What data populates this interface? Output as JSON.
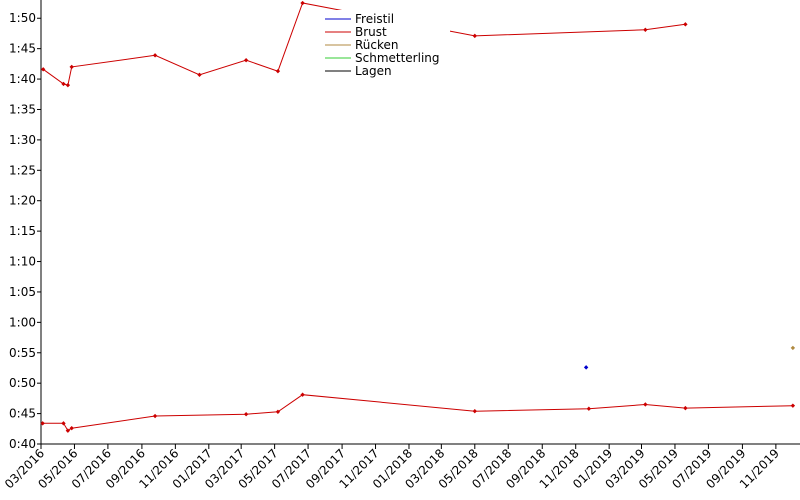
{
  "chart_data": {
    "type": "line",
    "x_axis": {
      "type": "date",
      "range": [
        "2016-03-01",
        "2019-12-15"
      ],
      "tick_labels": [
        "03/2016",
        "05/2016",
        "07/2016",
        "09/2016",
        "11/2016",
        "01/2017",
        "03/2017",
        "05/2017",
        "07/2017",
        "09/2017",
        "11/2017",
        "01/2018",
        "03/2018",
        "05/2018",
        "07/2018",
        "09/2018",
        "11/2018",
        "01/2019",
        "03/2019",
        "05/2019",
        "07/2019",
        "09/2019",
        "11/2019"
      ]
    },
    "y_axis": {
      "unit": "seconds",
      "range": [
        40,
        113
      ],
      "tick_labels": [
        "0:40",
        "0:45",
        "0:50",
        "0:55",
        "1:00",
        "1:05",
        "1:10",
        "1:15",
        "1:20",
        "1:25",
        "1:30",
        "1:35",
        "1:40",
        "1:45",
        "1:50"
      ]
    },
    "grid": false,
    "legend_position": "top-center",
    "series": [
      {
        "name": "Freistil",
        "color": "#0000cc",
        "points": [
          {
            "x": "2018-11-20",
            "y": 52.6
          }
        ]
      },
      {
        "name": "Brust",
        "color": "#cc0000",
        "points": [
          {
            "x": "2016-03-05",
            "y": 101.6
          },
          {
            "x": "2016-04-11",
            "y": 99.2
          },
          {
            "x": "2016-04-19",
            "y": 99.0
          },
          {
            "x": "2016-04-26",
            "y": 102.0
          },
          {
            "x": "2016-09-25",
            "y": 103.9
          },
          {
            "x": "2016-12-15",
            "y": 100.7
          },
          {
            "x": "2017-03-10",
            "y": 103.1
          },
          {
            "x": "2017-05-07",
            "y": 101.3
          },
          {
            "x": "2017-06-21",
            "y": 112.5
          },
          {
            "x": "2018-05-01",
            "y": 107.1
          },
          {
            "x": "2019-03-08",
            "y": 108.1
          },
          {
            "x": "2019-05-20",
            "y": 109.0
          }
        ]
      },
      {
        "name": "Brust",
        "color": "#cc0000",
        "points": [
          {
            "x": "2016-03-04",
            "y": 43.4
          },
          {
            "x": "2016-04-11",
            "y": 43.4
          },
          {
            "x": "2016-04-19",
            "y": 42.2
          },
          {
            "x": "2016-04-26",
            "y": 42.6
          },
          {
            "x": "2016-09-25",
            "y": 44.6
          },
          {
            "x": "2017-03-10",
            "y": 44.9
          },
          {
            "x": "2017-05-07",
            "y": 45.3
          },
          {
            "x": "2017-06-21",
            "y": 48.1
          },
          {
            "x": "2018-05-01",
            "y": 45.4
          },
          {
            "x": "2018-11-25",
            "y": 45.8
          },
          {
            "x": "2019-03-08",
            "y": 46.5
          },
          {
            "x": "2019-05-20",
            "y": 45.9
          },
          {
            "x": "2019-12-02",
            "y": 46.3
          }
        ]
      },
      {
        "name": "Rücken",
        "color": "#b08a40",
        "points": [
          {
            "x": "2019-12-02",
            "y": 55.8
          }
        ]
      },
      {
        "name": "Schmetterling",
        "color": "#33cc33",
        "points": []
      },
      {
        "name": "Lagen",
        "color": "#000000",
        "points": []
      }
    ],
    "legend": [
      "Freistil",
      "Brust",
      "Rücken",
      "Schmetterling",
      "Lagen"
    ]
  }
}
